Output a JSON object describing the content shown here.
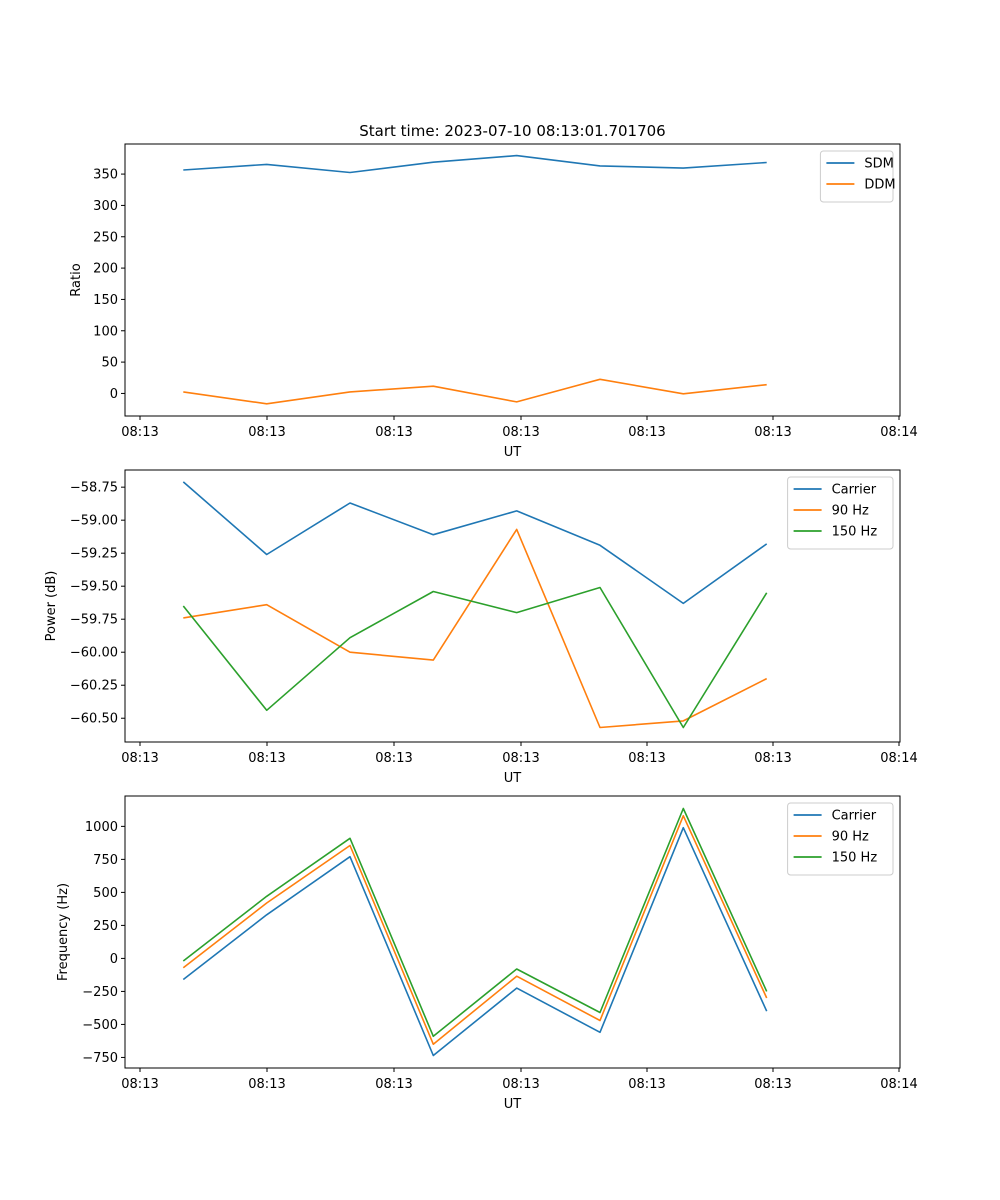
{
  "figure_title": "Start time: 2023-07-10 08:13:01.701706",
  "chart_data": [
    {
      "type": "line",
      "title": "Start time: 2023-07-10 08:13:01.701706",
      "xlabel": "UT",
      "ylabel": "Ratio",
      "x_ticks": [
        "08:13",
        "08:13",
        "08:13",
        "08:13",
        "08:13",
        "08:13",
        "08:14"
      ],
      "x_points": [
        1,
        2,
        3,
        4,
        5,
        6,
        7,
        8
      ],
      "xlim": [
        0.3,
        9.6
      ],
      "ylim": [
        -36,
        398
      ],
      "y_ticks": [
        0,
        50,
        100,
        150,
        200,
        250,
        300,
        350
      ],
      "legend_position": "top-right",
      "series": [
        {
          "name": "SDM",
          "color": "#1f77b4",
          "values": [
            356.5,
            365.5,
            352.5,
            369,
            379.5,
            363,
            359.5,
            368.5
          ]
        },
        {
          "name": "DDM",
          "color": "#ff7f0e",
          "values": [
            2.5,
            -16.5,
            2.5,
            11.5,
            -13.5,
            22.5,
            -0.5,
            14
          ]
        }
      ]
    },
    {
      "type": "line",
      "title": "",
      "xlabel": "UT",
      "ylabel": "Power (dB)",
      "x_ticks": [
        "08:13",
        "08:13",
        "08:13",
        "08:13",
        "08:13",
        "08:13",
        "08:14"
      ],
      "x_points": [
        1,
        2,
        3,
        4,
        5,
        6,
        7,
        8
      ],
      "xlim": [
        0.3,
        9.6
      ],
      "ylim": [
        -60.68,
        -58.62
      ],
      "y_ticks": [
        -60.5,
        -60.25,
        -60.0,
        -59.75,
        -59.5,
        -59.25,
        -59.0,
        -58.75
      ],
      "y_tick_labels": [
        "−60.50",
        "−60.25",
        "−60.00",
        "−59.75",
        "−59.50",
        "−59.25",
        "−59.00",
        "−58.75"
      ],
      "legend_position": "top-right",
      "series": [
        {
          "name": "Carrier",
          "color": "#1f77b4",
          "values": [
            -58.71,
            -59.26,
            -58.87,
            -59.11,
            -58.93,
            -59.19,
            -59.63,
            -59.18
          ]
        },
        {
          "name": "90 Hz",
          "color": "#ff7f0e",
          "values": [
            -59.74,
            -59.64,
            -60.0,
            -60.06,
            -59.07,
            -60.57,
            -60.52,
            -60.2
          ]
        },
        {
          "name": "150 Hz",
          "color": "#2ca02c",
          "values": [
            -59.65,
            -60.44,
            -59.89,
            -59.54,
            -59.7,
            -59.51,
            -60.57,
            -59.55
          ]
        }
      ]
    },
    {
      "type": "line",
      "title": "",
      "xlabel": "UT",
      "ylabel": "Frequency (Hz)",
      "x_ticks": [
        "08:13",
        "08:13",
        "08:13",
        "08:13",
        "08:13",
        "08:13",
        "08:14"
      ],
      "x_points": [
        1,
        2,
        3,
        4,
        5,
        6,
        7,
        8
      ],
      "xlim": [
        0.3,
        9.6
      ],
      "ylim": [
        -830,
        1230
      ],
      "y_ticks": [
        -750,
        -500,
        -250,
        0,
        250,
        500,
        750,
        1000
      ],
      "y_tick_labels": [
        "−750",
        "−500",
        "−250",
        "0",
        "250",
        "500",
        "750",
        "1000"
      ],
      "legend_position": "top-right",
      "series": [
        {
          "name": "Carrier",
          "color": "#1f77b4",
          "values": [
            -160,
            330,
            770,
            -735,
            -225,
            -560,
            990,
            -400
          ]
        },
        {
          "name": "90 Hz",
          "color": "#ff7f0e",
          "values": [
            -70,
            420,
            855,
            -650,
            -135,
            -470,
            1080,
            -300
          ]
        },
        {
          "name": "150 Hz",
          "color": "#2ca02c",
          "values": [
            -20,
            470,
            910,
            -590,
            -80,
            -410,
            1135,
            -250
          ]
        }
      ]
    }
  ]
}
